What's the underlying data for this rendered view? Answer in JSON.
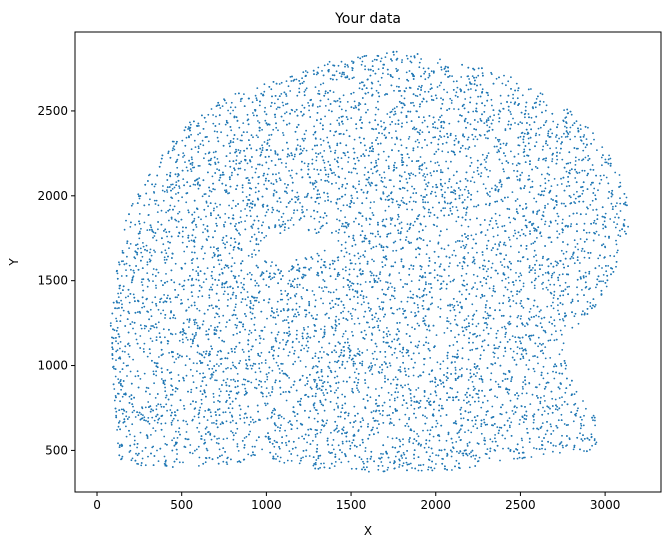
{
  "chart_data": {
    "type": "scatter",
    "title": "Your data",
    "xlabel": "X",
    "ylabel": "Y",
    "xlim": [
      -130,
      3330
    ],
    "ylim": [
      255,
      2965
    ],
    "xticks": [
      0,
      500,
      1000,
      1500,
      2000,
      2500,
      3000
    ],
    "yticks": [
      500,
      1000,
      1500,
      2000,
      2500
    ],
    "grid": false,
    "marker_color": "#1f77b4",
    "region": {
      "outline": [
        [
          80,
          1250
        ],
        [
          120,
          1600
        ],
        [
          180,
          1900
        ],
        [
          350,
          2200
        ],
        [
          550,
          2450
        ],
        [
          800,
          2600
        ],
        [
          1100,
          2700
        ],
        [
          1400,
          2800
        ],
        [
          1700,
          2850
        ],
        [
          1900,
          2860
        ],
        [
          2200,
          2780
        ],
        [
          2500,
          2680
        ],
        [
          2800,
          2500
        ],
        [
          3000,
          2300
        ],
        [
          3120,
          2050
        ],
        [
          3150,
          1850
        ],
        [
          3080,
          1600
        ],
        [
          2950,
          1350
        ],
        [
          2800,
          1200
        ],
        [
          2750,
          1050
        ],
        [
          2820,
          900
        ],
        [
          2960,
          700
        ],
        [
          2950,
          500
        ],
        [
          2500,
          450
        ],
        [
          2100,
          380
        ],
        [
          1700,
          370
        ],
        [
          1300,
          390
        ],
        [
          1100,
          420
        ],
        [
          1000,
          450
        ],
        [
          800,
          420
        ],
        [
          500,
          400
        ],
        [
          300,
          390
        ],
        [
          130,
          450
        ],
        [
          100,
          800
        ],
        [
          80,
          1250
        ]
      ],
      "holes": [
        [
          [
            950,
            1650
          ],
          [
            1050,
            1770
          ],
          [
            1180,
            1800
          ],
          [
            1330,
            1770
          ],
          [
            1450,
            1720
          ],
          [
            1300,
            1680
          ],
          [
            1100,
            1600
          ],
          [
            950,
            1650
          ]
        ]
      ]
    }
  }
}
